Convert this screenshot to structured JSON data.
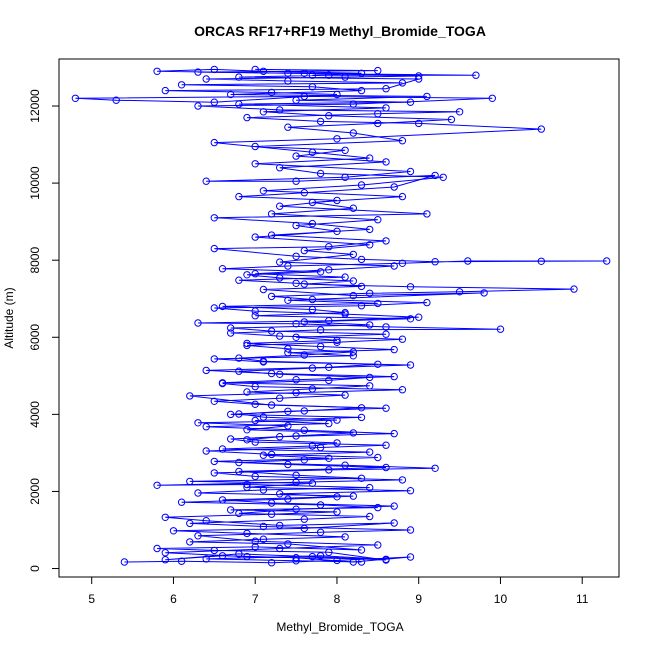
{
  "chart_data": {
    "type": "line",
    "title": "ORCAS RF17+RF19 Methyl_Bromide_TOGA",
    "xlabel": "Methyl_Bromide_TOGA",
    "ylabel": "Altitude (m)",
    "xlim": [
      4.6,
      11.45
    ],
    "ylim": [
      -220,
      13220
    ],
    "xticks": [
      5,
      6,
      7,
      8,
      9,
      10,
      11
    ],
    "yticks": [
      0,
      2000,
      4000,
      6000,
      8000,
      10000,
      12000
    ],
    "grid": false,
    "legend": "none",
    "color": "#0000ff",
    "series": [
      {
        "points": [
          [
            5.4,
            170
          ],
          [
            6.1,
            190
          ],
          [
            7.2,
            150
          ],
          [
            8.0,
            210
          ],
          [
            8.9,
            300
          ],
          [
            8.2,
            170
          ],
          [
            7.5,
            280
          ],
          [
            6.6,
            330
          ],
          [
            5.9,
            230
          ],
          [
            6.8,
            380
          ],
          [
            7.7,
            310
          ],
          [
            8.6,
            220
          ],
          [
            7.9,
            420
          ],
          [
            6.5,
            470
          ],
          [
            5.8,
            520
          ],
          [
            7.0,
            560
          ],
          [
            8.3,
            480
          ],
          [
            7.4,
            640
          ],
          [
            6.2,
            690
          ],
          [
            7.1,
            760
          ],
          [
            8.1,
            820
          ],
          [
            6.9,
            910
          ],
          [
            6.0,
            980
          ],
          [
            7.6,
            1040
          ],
          [
            8.7,
            1180
          ],
          [
            7.3,
            1120
          ],
          [
            6.4,
            1240
          ],
          [
            5.9,
            1330
          ],
          [
            7.2,
            1410
          ],
          [
            8.0,
            1470
          ],
          [
            6.7,
            1520
          ],
          [
            8.5,
            1580
          ],
          [
            7.8,
            1650
          ],
          [
            6.1,
            1720
          ],
          [
            7.4,
            1800
          ],
          [
            8.2,
            1880
          ],
          [
            6.3,
            1960
          ],
          [
            7.1,
            2040
          ],
          [
            8.4,
            2100
          ],
          [
            6.9,
            2180
          ],
          [
            5.8,
            2160
          ],
          [
            7.5,
            2240
          ],
          [
            8.8,
            2300
          ],
          [
            7.0,
            2390
          ],
          [
            6.5,
            2480
          ],
          [
            7.9,
            2560
          ],
          [
            9.2,
            2600
          ],
          [
            8.1,
            2680
          ],
          [
            6.8,
            2750
          ],
          [
            7.6,
            2820
          ],
          [
            8.5,
            2880
          ],
          [
            7.2,
            2960
          ],
          [
            6.4,
            3050
          ],
          [
            7.8,
            3140
          ],
          [
            8.6,
            3200
          ],
          [
            7.0,
            3280
          ],
          [
            6.7,
            3360
          ],
          [
            7.5,
            3440
          ],
          [
            8.2,
            3520
          ],
          [
            6.9,
            3600
          ],
          [
            7.4,
            3700
          ],
          [
            6.3,
            3780
          ],
          [
            8.0,
            3850
          ],
          [
            7.1,
            3930
          ],
          [
            6.8,
            4010
          ],
          [
            7.6,
            4090
          ],
          [
            8.3,
            4170
          ],
          [
            7.0,
            4260
          ],
          [
            6.5,
            4340
          ],
          [
            7.3,
            4420
          ],
          [
            8.1,
            4500
          ],
          [
            6.9,
            4580
          ],
          [
            7.7,
            4660
          ],
          [
            8.4,
            4740
          ],
          [
            6.6,
            4820
          ],
          [
            7.5,
            4900
          ],
          [
            8.7,
            4980
          ],
          [
            7.2,
            5060
          ],
          [
            6.4,
            5140
          ],
          [
            7.9,
            5220
          ],
          [
            8.5,
            5300
          ],
          [
            7.1,
            5380
          ],
          [
            6.8,
            5460
          ],
          [
            7.6,
            5540
          ],
          [
            8.2,
            5620
          ],
          [
            7.4,
            5700
          ],
          [
            6.9,
            5790
          ],
          [
            8.0,
            5870
          ],
          [
            8.8,
            5950
          ],
          [
            7.3,
            6030
          ],
          [
            6.7,
            6110
          ],
          [
            7.8,
            6190
          ],
          [
            10.0,
            6210
          ],
          [
            8.6,
            6270
          ],
          [
            7.5,
            6350
          ],
          [
            6.3,
            6370
          ],
          [
            7.9,
            6430
          ],
          [
            9.0,
            6520
          ],
          [
            8.1,
            6600
          ],
          [
            7.0,
            6680
          ],
          [
            6.5,
            6760
          ],
          [
            8.3,
            6820
          ],
          [
            9.1,
            6900
          ],
          [
            7.7,
            6980
          ],
          [
            7.2,
            7060
          ],
          [
            8.4,
            7140
          ],
          [
            9.5,
            7180
          ],
          [
            10.9,
            7250
          ],
          [
            8.9,
            7310
          ],
          [
            7.6,
            7380
          ],
          [
            8.2,
            7460
          ],
          [
            7.3,
            7540
          ],
          [
            6.9,
            7620
          ],
          [
            7.8,
            7700
          ],
          [
            6.6,
            7780
          ],
          [
            7.4,
            7850
          ],
          [
            8.8,
            7920
          ],
          [
            9.6,
            7980
          ],
          [
            11.3,
            7980
          ],
          [
            10.5,
            7970
          ],
          [
            9.2,
            7960
          ],
          [
            8.3,
            8020
          ],
          [
            7.5,
            8100
          ],
          [
            6.5,
            8300
          ],
          [
            7.9,
            8350
          ],
          [
            8.6,
            8500
          ],
          [
            7.2,
            8650
          ],
          [
            8.4,
            8800
          ],
          [
            7.7,
            8950
          ],
          [
            6.5,
            9100
          ],
          [
            9.1,
            9200
          ],
          [
            7.3,
            9400
          ],
          [
            8.0,
            9550
          ],
          [
            6.8,
            9650
          ],
          [
            7.6,
            9750
          ],
          [
            8.7,
            9900
          ],
          [
            9.2,
            10200
          ],
          [
            7.5,
            10050
          ],
          [
            6.4,
            10050
          ],
          [
            8.1,
            10150
          ],
          [
            8.9,
            10300
          ],
          [
            7.0,
            10500
          ],
          [
            8.4,
            10650
          ],
          [
            7.7,
            10800
          ],
          [
            6.5,
            11050
          ],
          [
            8.0,
            11150
          ],
          [
            10.5,
            11400
          ],
          [
            9.0,
            11550
          ],
          [
            7.8,
            11600
          ],
          [
            6.9,
            11700
          ],
          [
            8.5,
            11800
          ],
          [
            9.5,
            11850
          ],
          [
            7.3,
            11900
          ],
          [
            6.3,
            12000
          ],
          [
            8.2,
            12050
          ],
          [
            9.9,
            12200
          ],
          [
            7.6,
            12250
          ],
          [
            4.8,
            12200
          ],
          [
            5.3,
            12150
          ],
          [
            6.5,
            12100
          ],
          [
            8.0,
            12300
          ],
          [
            7.2,
            12350
          ],
          [
            5.9,
            12400
          ],
          [
            8.6,
            12450
          ],
          [
            9.0,
            12700
          ],
          [
            6.8,
            12750
          ],
          [
            7.9,
            12800
          ],
          [
            9.7,
            12800
          ],
          [
            7.4,
            12850
          ],
          [
            5.8,
            12900
          ],
          [
            6.5,
            12950
          ],
          [
            7.1,
            12900
          ],
          [
            8.3,
            12850
          ],
          [
            7.7,
            12800
          ]
        ]
      },
      {
        "points": [
          [
            8.3,
            170
          ],
          [
            7.5,
            200
          ],
          [
            6.4,
            250
          ],
          [
            7.8,
            330
          ],
          [
            8.6,
            240
          ],
          [
            6.9,
            310
          ],
          [
            5.9,
            410
          ],
          [
            7.3,
            520
          ],
          [
            8.5,
            610
          ],
          [
            7.0,
            710
          ],
          [
            6.3,
            850
          ],
          [
            7.8,
            940
          ],
          [
            8.9,
            1000
          ],
          [
            7.1,
            1090
          ],
          [
            6.2,
            1170
          ],
          [
            7.6,
            1280
          ],
          [
            8.4,
            1350
          ],
          [
            6.8,
            1430
          ],
          [
            7.5,
            1540
          ],
          [
            8.7,
            1620
          ],
          [
            7.2,
            1700
          ],
          [
            6.6,
            1780
          ],
          [
            8.0,
            1860
          ],
          [
            7.3,
            1940
          ],
          [
            8.9,
            2020
          ],
          [
            6.9,
            2110
          ],
          [
            7.7,
            2210
          ],
          [
            6.2,
            2260
          ],
          [
            8.3,
            2340
          ],
          [
            7.5,
            2420
          ],
          [
            6.8,
            2520
          ],
          [
            8.6,
            2620
          ],
          [
            7.4,
            2700
          ],
          [
            6.5,
            2780
          ],
          [
            7.9,
            2860
          ],
          [
            7.1,
            2940
          ],
          [
            8.4,
            3020
          ],
          [
            6.6,
            3100
          ],
          [
            7.7,
            3180
          ],
          [
            8.0,
            3260
          ],
          [
            6.9,
            3340
          ],
          [
            7.3,
            3420
          ],
          [
            8.7,
            3500
          ],
          [
            7.6,
            3590
          ],
          [
            6.4,
            3680
          ],
          [
            7.9,
            3760
          ],
          [
            7.0,
            3840
          ],
          [
            8.3,
            3920
          ],
          [
            6.7,
            4000
          ],
          [
            7.4,
            4080
          ],
          [
            8.6,
            4160
          ],
          [
            7.2,
            4240
          ],
          [
            6.2,
            4480
          ],
          [
            7.5,
            4560
          ],
          [
            8.8,
            4640
          ],
          [
            7.0,
            4720
          ],
          [
            6.6,
            4800
          ],
          [
            7.9,
            4880
          ],
          [
            8.4,
            4960
          ],
          [
            7.3,
            5040
          ],
          [
            6.8,
            5120
          ],
          [
            7.7,
            5200
          ],
          [
            8.9,
            5280
          ],
          [
            7.1,
            5360
          ],
          [
            6.5,
            5440
          ],
          [
            8.2,
            5520
          ],
          [
            7.4,
            5600
          ],
          [
            8.7,
            5680
          ],
          [
            7.8,
            5760
          ],
          [
            6.9,
            5840
          ],
          [
            8.0,
            5920
          ],
          [
            7.5,
            6000
          ],
          [
            8.6,
            6080
          ],
          [
            7.2,
            6160
          ],
          [
            6.7,
            6240
          ],
          [
            8.4,
            6320
          ],
          [
            7.6,
            6400
          ],
          [
            8.9,
            6480
          ],
          [
            7.0,
            6560
          ],
          [
            8.1,
            6640
          ],
          [
            7.7,
            6720
          ],
          [
            6.6,
            6800
          ],
          [
            8.5,
            6880
          ],
          [
            7.4,
            6960
          ],
          [
            9.8,
            7150
          ],
          [
            8.2,
            7080
          ],
          [
            7.1,
            7240
          ],
          [
            8.3,
            7320
          ],
          [
            7.5,
            7400
          ],
          [
            6.8,
            7480
          ],
          [
            8.1,
            7560
          ],
          [
            7.0,
            7650
          ],
          [
            7.9,
            7750
          ],
          [
            8.7,
            7850
          ],
          [
            7.3,
            7950
          ],
          [
            8.2,
            8150
          ],
          [
            7.6,
            8250
          ],
          [
            8.4,
            8400
          ],
          [
            7.0,
            8600
          ],
          [
            8.0,
            8750
          ],
          [
            7.5,
            8900
          ],
          [
            8.5,
            9050
          ],
          [
            7.2,
            9200
          ],
          [
            8.2,
            9350
          ],
          [
            7.7,
            9500
          ],
          [
            8.8,
            9650
          ],
          [
            7.1,
            9800
          ],
          [
            8.3,
            9950
          ],
          [
            9.3,
            10150
          ],
          [
            7.8,
            10250
          ],
          [
            7.3,
            10400
          ],
          [
            8.6,
            10550
          ],
          [
            7.5,
            10700
          ],
          [
            8.1,
            10850
          ],
          [
            7.0,
            10950
          ],
          [
            8.8,
            11100
          ],
          [
            8.2,
            11300
          ],
          [
            7.4,
            11450
          ],
          [
            8.5,
            11550
          ],
          [
            9.4,
            11650
          ],
          [
            7.9,
            11750
          ],
          [
            7.1,
            11850
          ],
          [
            8.6,
            11950
          ],
          [
            6.8,
            12050
          ],
          [
            8.9,
            12100
          ],
          [
            7.5,
            12150
          ],
          [
            9.1,
            12250
          ],
          [
            6.7,
            12300
          ],
          [
            8.3,
            12400
          ],
          [
            7.7,
            12500
          ],
          [
            6.1,
            12550
          ],
          [
            8.8,
            12600
          ],
          [
            7.4,
            12650
          ],
          [
            6.4,
            12700
          ],
          [
            8.1,
            12750
          ],
          [
            9.0,
            12780
          ],
          [
            7.6,
            12850
          ],
          [
            6.3,
            12880
          ],
          [
            8.5,
            12920
          ],
          [
            7.0,
            12950
          ]
        ]
      }
    ]
  }
}
